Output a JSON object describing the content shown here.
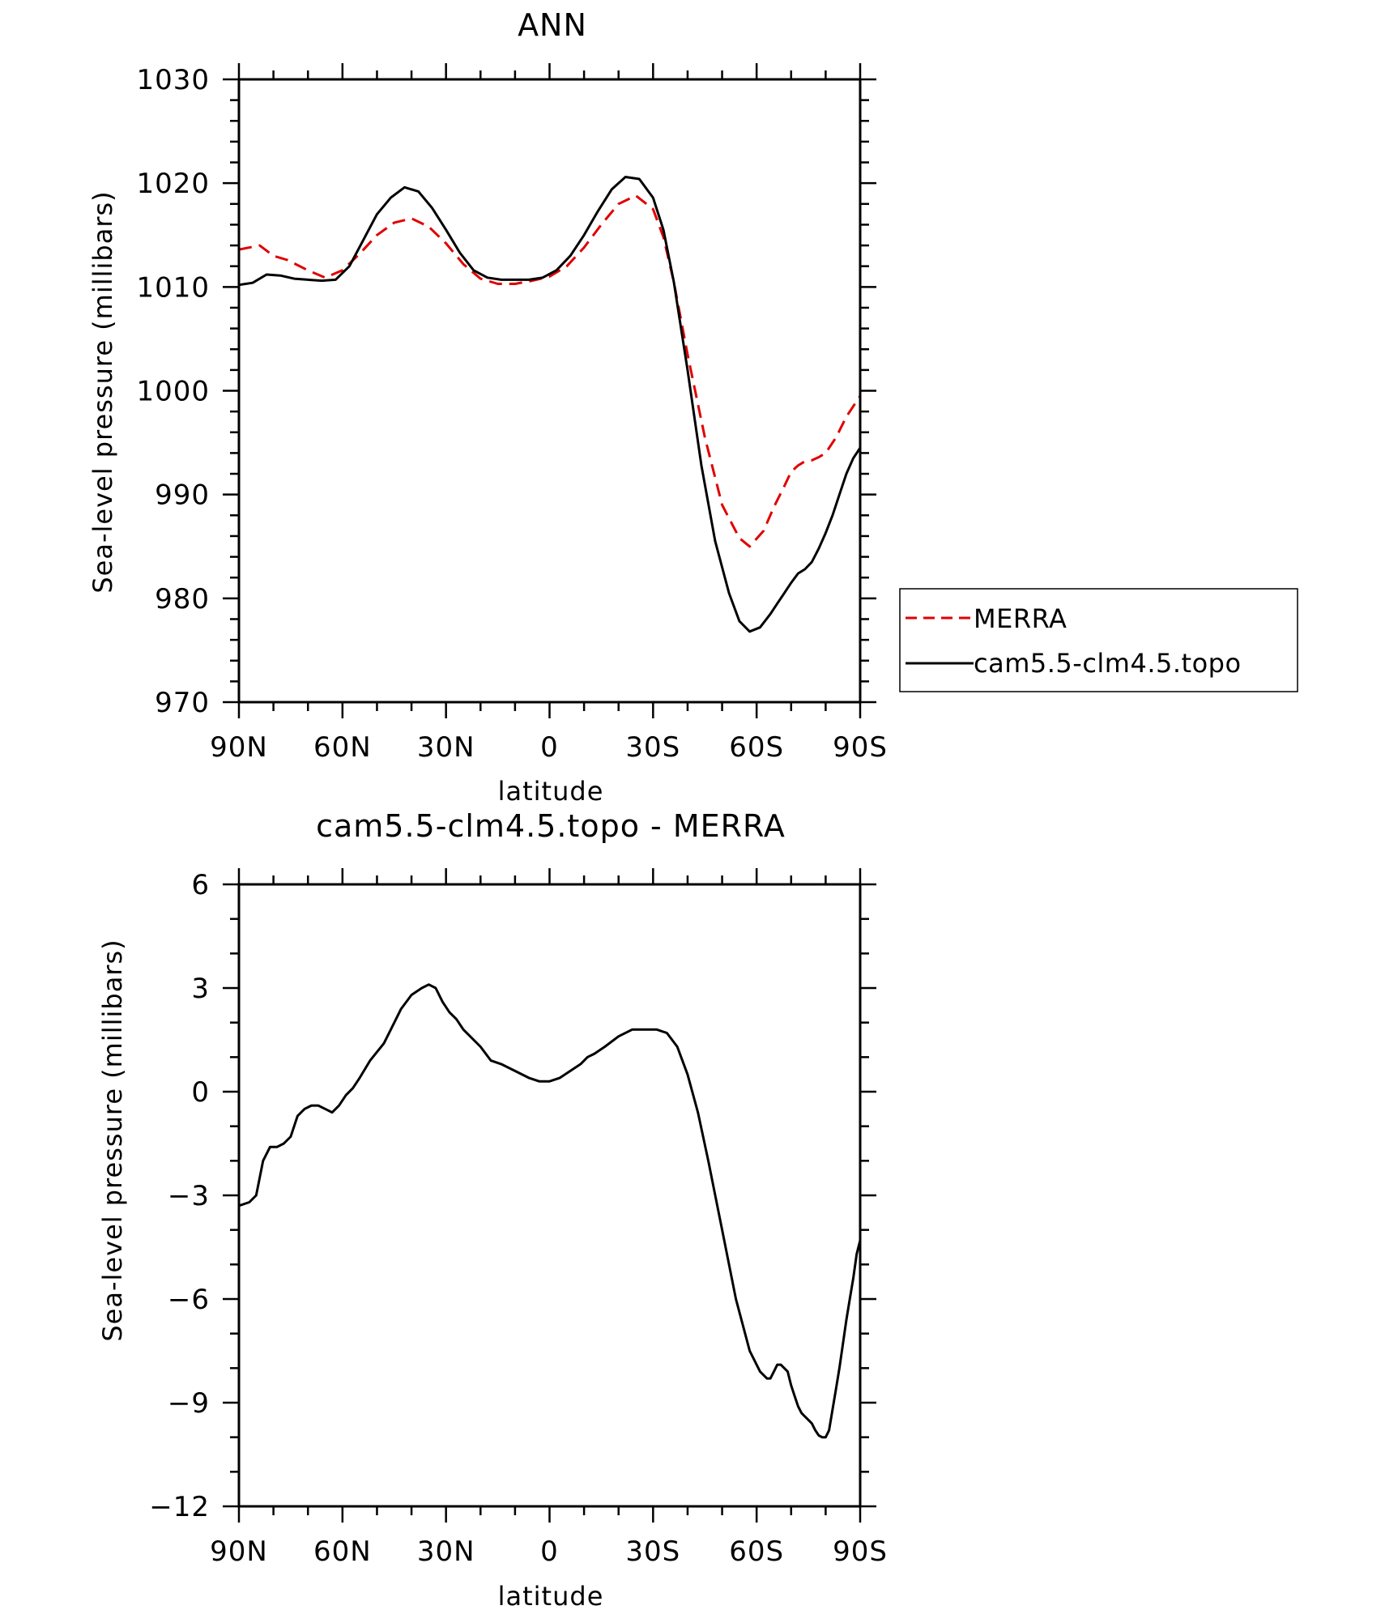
{
  "chart_data": [
    {
      "type": "line",
      "title": "ANN",
      "xlabel": "latitude",
      "ylabel": "Sea-level pressure (millibars)",
      "xlim": [
        90,
        -90
      ],
      "ylim": [
        970,
        1030
      ],
      "x_ticks": [
        90,
        60,
        30,
        0,
        -30,
        -60,
        -90
      ],
      "x_tick_labels": [
        "90N",
        "60N",
        "30N",
        "0",
        "30S",
        "60S",
        "90S"
      ],
      "y_ticks": [
        970,
        980,
        990,
        1000,
        1010,
        1020,
        1030
      ],
      "y_tick_labels": [
        "970",
        "980",
        "990",
        "1000",
        "1010",
        "1020",
        "1030"
      ],
      "legend_position": "right",
      "series": [
        {
          "name": "MERRA",
          "color": "#e00000",
          "style": "dashed",
          "x": [
            90,
            84,
            80,
            76,
            70,
            65,
            60,
            55,
            50,
            45,
            40,
            35,
            30,
            25,
            20,
            15,
            10,
            5,
            0,
            -5,
            -10,
            -15,
            -20,
            -25,
            -30,
            -33,
            -36,
            -40,
            -45,
            -50,
            -55,
            -58,
            -62,
            -65,
            -68,
            -70,
            -72,
            -74,
            -76,
            -78,
            -80,
            -83,
            -86,
            -88,
            -90
          ],
          "y": [
            1013.6,
            1014.0,
            1013.0,
            1012.6,
            1011.6,
            1010.9,
            1011.6,
            1013.2,
            1015.0,
            1016.2,
            1016.6,
            1015.8,
            1014.2,
            1012.2,
            1010.8,
            1010.3,
            1010.3,
            1010.6,
            1011.0,
            1012.0,
            1013.8,
            1016.0,
            1018.0,
            1018.8,
            1017.5,
            1014.8,
            1010.5,
            1003.5,
            995.5,
            989.0,
            985.8,
            985.0,
            986.5,
            988.8,
            990.8,
            992.2,
            992.8,
            993.2,
            993.3,
            993.6,
            994.0,
            995.5,
            997.5,
            998.5,
            999.5
          ]
        },
        {
          "name": "cam5.5-clm4.5.topo",
          "color": "#000000",
          "style": "solid",
          "x": [
            90,
            86,
            82,
            78,
            74,
            70,
            66,
            62,
            58,
            54,
            50,
            46,
            42,
            38,
            34,
            30,
            26,
            22,
            18,
            14,
            10,
            6,
            2,
            -2,
            -6,
            -10,
            -14,
            -18,
            -22,
            -26,
            -30,
            -33,
            -36,
            -40,
            -44,
            -48,
            -52,
            -55,
            -58,
            -61,
            -64,
            -66,
            -68,
            -70,
            -72,
            -74,
            -76,
            -78,
            -80,
            -82,
            -84,
            -86,
            -88,
            -90
          ],
          "y": [
            1010.2,
            1010.4,
            1011.2,
            1011.1,
            1010.8,
            1010.7,
            1010.6,
            1010.7,
            1012.0,
            1014.5,
            1017.0,
            1018.6,
            1019.6,
            1019.2,
            1017.6,
            1015.5,
            1013.3,
            1011.6,
            1010.9,
            1010.7,
            1010.7,
            1010.7,
            1010.9,
            1011.6,
            1013.0,
            1015.0,
            1017.3,
            1019.4,
            1020.6,
            1020.4,
            1018.6,
            1015.5,
            1010.5,
            1002.0,
            992.8,
            985.5,
            980.5,
            977.8,
            976.8,
            977.2,
            978.5,
            979.5,
            980.5,
            981.5,
            982.4,
            982.8,
            983.5,
            984.8,
            986.3,
            988.0,
            990.0,
            992.0,
            993.5,
            994.5
          ]
        }
      ]
    },
    {
      "type": "line",
      "title": "cam5.5-clm4.5.topo - MERRA",
      "xlabel": "latitude",
      "ylabel": "Sea-level pressure (millibars)",
      "xlim": [
        90,
        -90
      ],
      "ylim": [
        -12,
        6
      ],
      "x_ticks": [
        90,
        60,
        30,
        0,
        -30,
        -60,
        -90
      ],
      "x_tick_labels": [
        "90N",
        "60N",
        "30N",
        "0",
        "30S",
        "60S",
        "90S"
      ],
      "y_ticks": [
        -12,
        -9,
        -6,
        -3,
        0,
        3,
        6
      ],
      "y_tick_labels": [
        "−12",
        "−9",
        "−6",
        "−3",
        "0",
        "3",
        "6"
      ],
      "series": [
        {
          "color": "#000000",
          "style": "solid",
          "x": [
            90,
            87,
            85,
            83,
            81,
            79,
            77,
            75,
            73,
            71,
            69,
            67,
            65,
            63,
            61,
            59,
            57,
            55,
            52,
            48,
            45,
            43,
            40,
            37,
            35,
            33,
            31,
            29,
            27,
            25,
            23,
            20,
            17,
            14,
            10,
            6,
            3,
            0,
            -3,
            -6,
            -9,
            -11,
            -13,
            -16,
            -20,
            -24,
            -28,
            -31,
            -34,
            -37,
            -40,
            -43,
            -46,
            -50,
            -54,
            -58,
            -61,
            -63,
            -64,
            -65,
            -66,
            -67,
            -69,
            -70,
            -71,
            -72,
            -73,
            -74,
            -75,
            -76,
            -77,
            -78,
            -79,
            -80,
            -81,
            -82,
            -83,
            -84,
            -85,
            -86,
            -87,
            -88,
            -89,
            -90
          ],
          "y": [
            -3.3,
            -3.2,
            -3.0,
            -2.0,
            -1.6,
            -1.6,
            -1.5,
            -1.3,
            -0.7,
            -0.5,
            -0.4,
            -0.4,
            -0.5,
            -0.6,
            -0.4,
            -0.1,
            0.1,
            0.4,
            0.9,
            1.4,
            2.0,
            2.4,
            2.8,
            3.0,
            3.1,
            3.0,
            2.6,
            2.3,
            2.1,
            1.8,
            1.6,
            1.3,
            0.9,
            0.8,
            0.6,
            0.4,
            0.3,
            0.3,
            0.4,
            0.6,
            0.8,
            1.0,
            1.1,
            1.3,
            1.6,
            1.8,
            1.8,
            1.8,
            1.7,
            1.3,
            0.5,
            -0.6,
            -2.0,
            -4.0,
            -6.0,
            -7.5,
            -8.1,
            -8.3,
            -8.3,
            -8.1,
            -7.9,
            -7.9,
            -8.1,
            -8.5,
            -8.8,
            -9.1,
            -9.3,
            -9.4,
            -9.5,
            -9.6,
            -9.8,
            -9.95,
            -10.0,
            -10.0,
            -9.8,
            -9.2,
            -8.6,
            -8.0,
            -7.3,
            -6.6,
            -6.0,
            -5.4,
            -4.7,
            -4.3
          ]
        }
      ]
    }
  ]
}
